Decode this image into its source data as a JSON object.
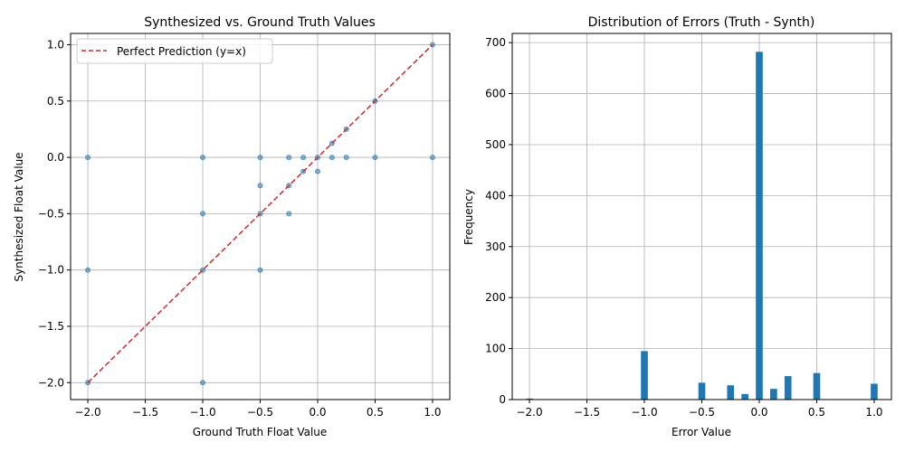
{
  "chart_data": [
    {
      "type": "scatter",
      "title": "Synthesized vs. Ground Truth Values",
      "xlabel": "Ground Truth Float Value",
      "ylabel": "Synthesized Float Value",
      "xlim": [
        -2.15,
        1.15
      ],
      "ylim": [
        -2.15,
        1.1
      ],
      "x_ticks": [
        -2.0,
        -1.5,
        -1.0,
        -0.5,
        0.0,
        0.5,
        1.0
      ],
      "x_tick_labels": [
        "−2.0",
        "−1.5",
        "−1.0",
        "−0.5",
        "0.0",
        "0.5",
        "1.0"
      ],
      "y_ticks": [
        -2.0,
        -1.5,
        -1.0,
        -0.5,
        0.0,
        0.5,
        1.0
      ],
      "y_tick_labels": [
        "−2.0",
        "−1.5",
        "−1.0",
        "−0.5",
        "0.0",
        "0.5",
        "1.0"
      ],
      "grid": true,
      "legend_position": "top-left",
      "legend": [
        "Perfect Prediction (y=x)"
      ],
      "reference_line": {
        "label": "Perfect Prediction (y=x)",
        "color": "#d62728",
        "style": "dashed",
        "from": [
          -2,
          -2
        ],
        "to": [
          1,
          1
        ]
      },
      "point_color": "#1f77b4",
      "points": [
        {
          "x": -2.0,
          "y": -2.0
        },
        {
          "x": -2.0,
          "y": -1.0
        },
        {
          "x": -2.0,
          "y": 0.0
        },
        {
          "x": -1.0,
          "y": -2.0
        },
        {
          "x": -1.0,
          "y": -1.0
        },
        {
          "x": -1.0,
          "y": -0.5
        },
        {
          "x": -1.0,
          "y": 0.0
        },
        {
          "x": -0.5,
          "y": -1.0
        },
        {
          "x": -0.5,
          "y": -0.5
        },
        {
          "x": -0.5,
          "y": -0.25
        },
        {
          "x": -0.5,
          "y": 0.0
        },
        {
          "x": -0.25,
          "y": -0.5
        },
        {
          "x": -0.25,
          "y": -0.25
        },
        {
          "x": -0.25,
          "y": 0.0
        },
        {
          "x": -0.125,
          "y": -0.125
        },
        {
          "x": -0.125,
          "y": 0.0
        },
        {
          "x": 0.0,
          "y": -0.125
        },
        {
          "x": 0.0,
          "y": 0.0
        },
        {
          "x": 0.125,
          "y": 0.0
        },
        {
          "x": 0.125,
          "y": 0.125
        },
        {
          "x": 0.25,
          "y": 0.0
        },
        {
          "x": 0.25,
          "y": 0.25
        },
        {
          "x": 0.5,
          "y": 0.0
        },
        {
          "x": 0.5,
          "y": 0.5
        },
        {
          "x": 1.0,
          "y": 0.0
        },
        {
          "x": 1.0,
          "y": 1.0
        }
      ]
    },
    {
      "type": "bar",
      "title": "Distribution of Errors (Truth - Synth)",
      "xlabel": "Error Value",
      "ylabel": "Frequency",
      "xlim": [
        -2.15,
        1.15
      ],
      "ylim": [
        0,
        718
      ],
      "x_ticks": [
        -2.0,
        -1.5,
        -1.0,
        -0.5,
        0.0,
        0.5,
        1.0
      ],
      "x_tick_labels": [
        "−2.0",
        "−1.5",
        "−1.0",
        "−0.5",
        "0.0",
        "0.5",
        "1.0"
      ],
      "y_ticks": [
        0,
        100,
        200,
        300,
        400,
        500,
        600,
        700
      ],
      "y_tick_labels": [
        "0",
        "100",
        "200",
        "300",
        "400",
        "500",
        "600",
        "700"
      ],
      "grid": true,
      "bar_color": "#1f77b4",
      "bin_width": 0.06,
      "bins": [
        {
          "x": -2.0,
          "value": 2
        },
        {
          "x": -1.0,
          "value": 95
        },
        {
          "x": -0.5,
          "value": 33
        },
        {
          "x": -0.25,
          "value": 28
        },
        {
          "x": -0.125,
          "value": 11
        },
        {
          "x": 0.0,
          "value": 682
        },
        {
          "x": 0.125,
          "value": 21
        },
        {
          "x": 0.25,
          "value": 46
        },
        {
          "x": 0.5,
          "value": 52
        },
        {
          "x": 1.0,
          "value": 31
        }
      ]
    }
  ]
}
